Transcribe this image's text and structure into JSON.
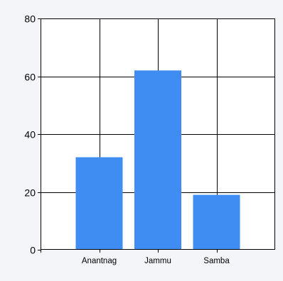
{
  "chart_data": {
    "type": "bar",
    "categories": [
      "Anantnag",
      "Jammu",
      "Samba"
    ],
    "values": [
      32,
      62,
      19
    ],
    "ylim": [
      0,
      80
    ],
    "yticks": [
      0,
      20,
      40,
      60,
      80
    ],
    "grid": true,
    "legend": "none",
    "bar_color": "#3f8cf3",
    "grid_color": "#000000",
    "background": "#ffffff"
  }
}
